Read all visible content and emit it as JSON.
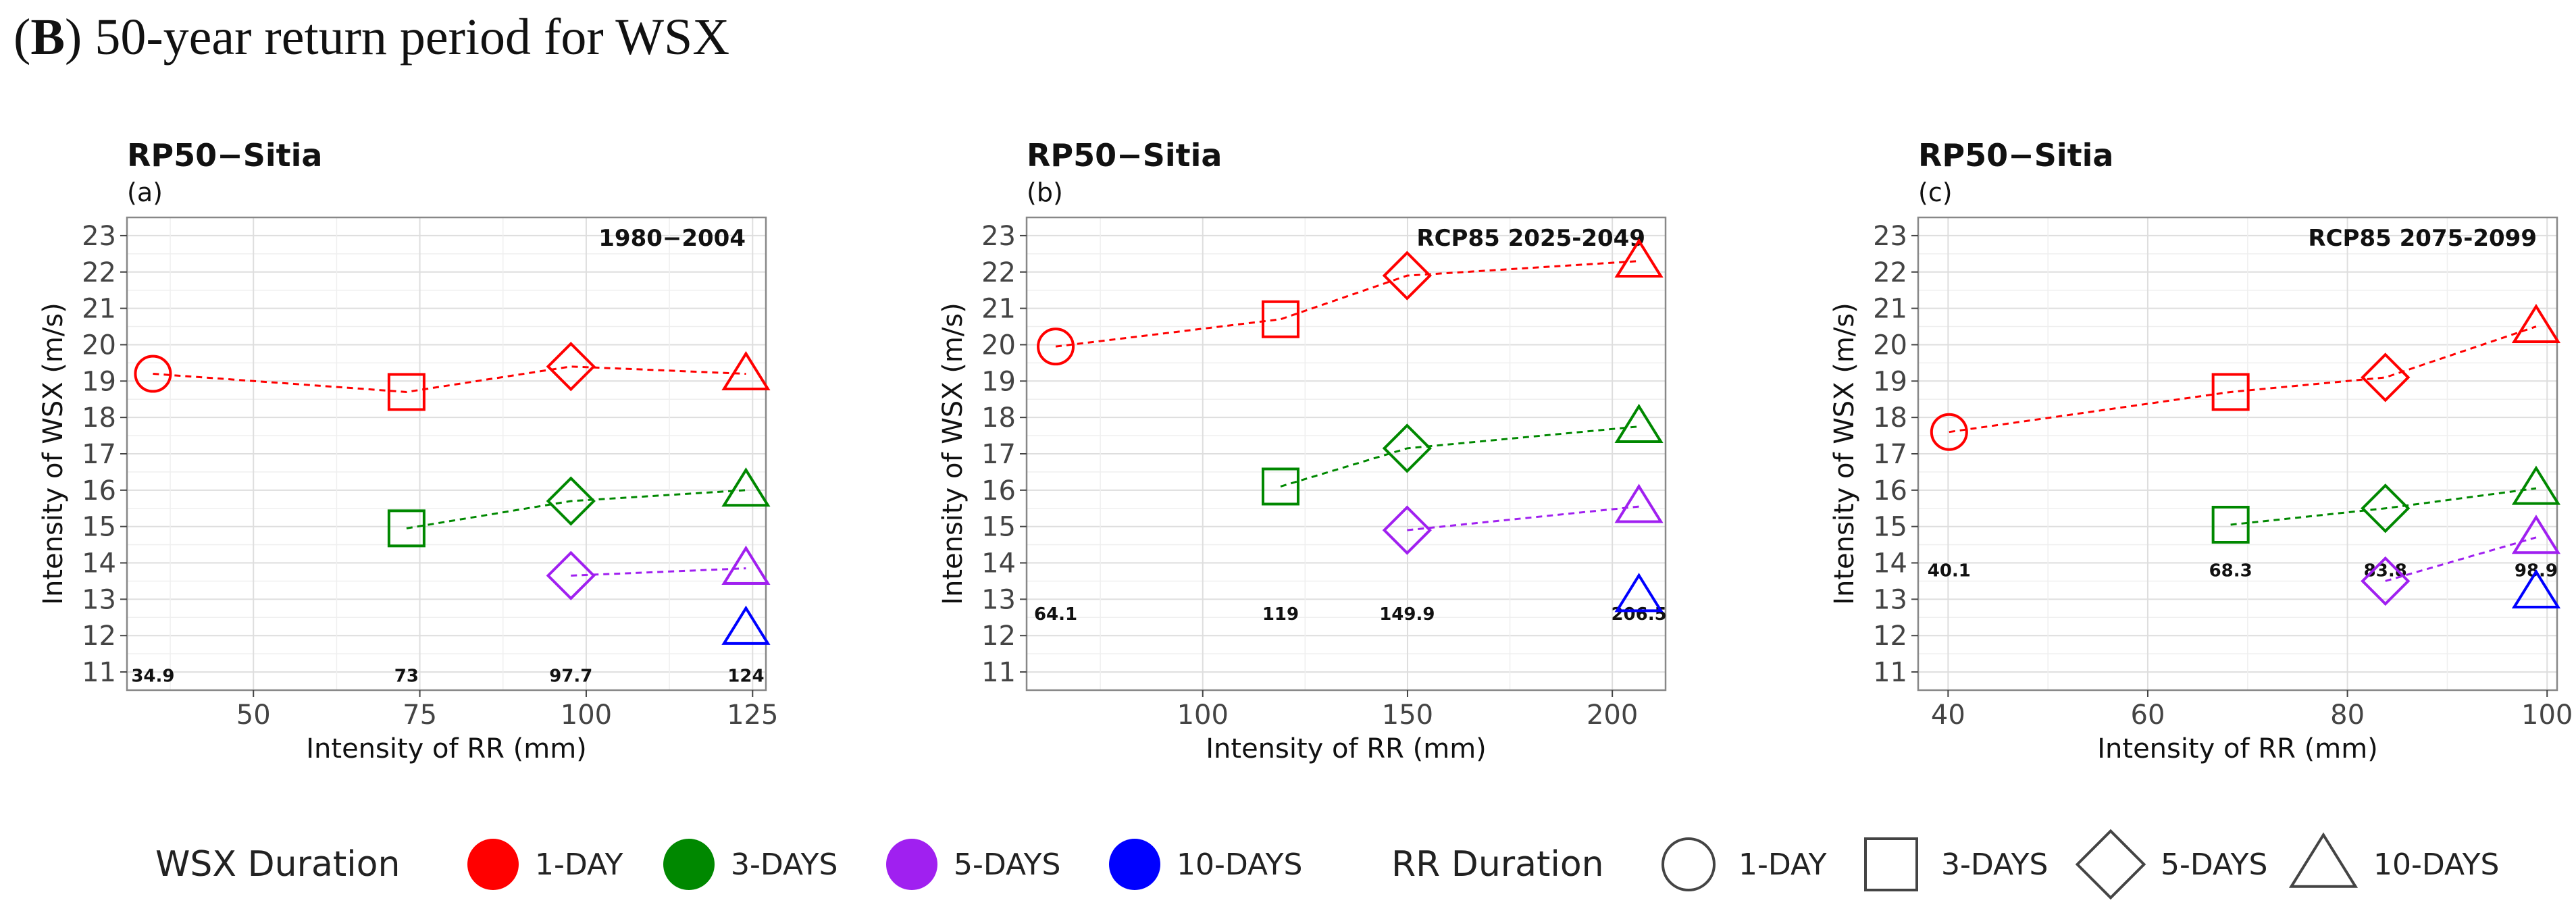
{
  "figure": {
    "label": "B",
    "heading": "50-year return period for WSX"
  },
  "chart_data": [
    {
      "type": "scatter",
      "title": "RP50−Sitia",
      "subtitle": "(a)",
      "period": "1980−2004",
      "xlabel": "Intensity of RR (mm)",
      "ylabel": "Intensity of WSX (m/s)",
      "xlim": [
        31,
        127
      ],
      "ylim": [
        10.5,
        23.5
      ],
      "xticks": [
        50,
        75,
        100,
        125
      ],
      "yticks": [
        11,
        12,
        13,
        14,
        15,
        16,
        17,
        18,
        19,
        20,
        21,
        22,
        23
      ],
      "rr_label_y": 10.9,
      "rr_labels": [
        {
          "x": 34.9,
          "text": "34.9"
        },
        {
          "x": 73,
          "text": "73"
        },
        {
          "x": 97.7,
          "text": "97.7"
        },
        {
          "x": 124,
          "text": "124"
        }
      ],
      "series": [
        {
          "name": "1-DAY",
          "points": [
            {
              "x": 34.9,
              "y": 19.2,
              "shape": "circle"
            },
            {
              "x": 73,
              "y": 18.7,
              "shape": "square"
            },
            {
              "x": 97.7,
              "y": 19.4,
              "shape": "diamond"
            },
            {
              "x": 124,
              "y": 19.2,
              "shape": "triangle"
            }
          ]
        },
        {
          "name": "3-DAYS",
          "points": [
            {
              "x": 73,
              "y": 14.95,
              "shape": "square"
            },
            {
              "x": 97.7,
              "y": 15.7,
              "shape": "diamond"
            },
            {
              "x": 124,
              "y": 16.0,
              "shape": "triangle"
            }
          ]
        },
        {
          "name": "5-DAYS",
          "points": [
            {
              "x": 97.7,
              "y": 13.65,
              "shape": "diamond"
            },
            {
              "x": 124,
              "y": 13.85,
              "shape": "triangle"
            }
          ]
        },
        {
          "name": "10-DAYS",
          "points": [
            {
              "x": 124,
              "y": 12.2,
              "shape": "triangle"
            }
          ]
        }
      ]
    },
    {
      "type": "scatter",
      "title": "RP50−Sitia",
      "subtitle": "(b)",
      "period": "RCP85 2025-2049",
      "xlabel": "Intensity of RR (mm)",
      "ylabel": "Intensity of WSX (m/s)",
      "xlim": [
        57,
        213
      ],
      "ylim": [
        10.5,
        23.5
      ],
      "xticks": [
        100,
        150,
        200
      ],
      "yticks": [
        11,
        12,
        13,
        14,
        15,
        16,
        17,
        18,
        19,
        20,
        21,
        22,
        23
      ],
      "rr_label_y": 12.6,
      "rr_labels": [
        {
          "x": 64.1,
          "text": "64.1"
        },
        {
          "x": 119,
          "text": "119"
        },
        {
          "x": 149.9,
          "text": "149.9"
        },
        {
          "x": 206.5,
          "text": "206.5"
        }
      ],
      "series": [
        {
          "name": "1-DAY",
          "points": [
            {
              "x": 64.1,
              "y": 19.95,
              "shape": "circle"
            },
            {
              "x": 119,
              "y": 20.7,
              "shape": "square"
            },
            {
              "x": 149.9,
              "y": 21.9,
              "shape": "diamond"
            },
            {
              "x": 206.5,
              "y": 22.3,
              "shape": "triangle"
            }
          ]
        },
        {
          "name": "3-DAYS",
          "points": [
            {
              "x": 119,
              "y": 16.1,
              "shape": "square"
            },
            {
              "x": 149.9,
              "y": 17.15,
              "shape": "diamond"
            },
            {
              "x": 206.5,
              "y": 17.75,
              "shape": "triangle"
            }
          ]
        },
        {
          "name": "5-DAYS",
          "points": [
            {
              "x": 149.9,
              "y": 14.9,
              "shape": "diamond"
            },
            {
              "x": 206.5,
              "y": 15.55,
              "shape": "triangle"
            }
          ]
        },
        {
          "name": "10-DAYS",
          "points": [
            {
              "x": 206.5,
              "y": 13.1,
              "shape": "triangle"
            }
          ]
        }
      ]
    },
    {
      "type": "scatter",
      "title": "RP50−Sitia",
      "subtitle": "(c)",
      "period": "RCP85 2075-2099",
      "xlabel": "Intensity of RR (mm)",
      "ylabel": "Intensity of WSX (m/s)",
      "xlim": [
        37,
        101
      ],
      "ylim": [
        10.5,
        23.5
      ],
      "xticks": [
        40,
        60,
        80,
        100
      ],
      "yticks": [
        11,
        12,
        13,
        14,
        15,
        16,
        17,
        18,
        19,
        20,
        21,
        22,
        23
      ],
      "rr_label_y": 13.8,
      "rr_labels": [
        {
          "x": 40.1,
          "text": "40.1"
        },
        {
          "x": 68.3,
          "text": "68.3"
        },
        {
          "x": 83.8,
          "text": "83.8"
        },
        {
          "x": 98.9,
          "text": "98.9"
        }
      ],
      "series": [
        {
          "name": "1-DAY",
          "points": [
            {
              "x": 40.1,
              "y": 17.6,
              "shape": "circle"
            },
            {
              "x": 68.3,
              "y": 18.7,
              "shape": "square"
            },
            {
              "x": 83.8,
              "y": 19.1,
              "shape": "diamond"
            },
            {
              "x": 98.9,
              "y": 20.5,
              "shape": "triangle"
            }
          ]
        },
        {
          "name": "3-DAYS",
          "points": [
            {
              "x": 68.3,
              "y": 15.05,
              "shape": "square"
            },
            {
              "x": 83.8,
              "y": 15.5,
              "shape": "diamond"
            },
            {
              "x": 98.9,
              "y": 16.05,
              "shape": "triangle"
            }
          ]
        },
        {
          "name": "5-DAYS",
          "points": [
            {
              "x": 83.8,
              "y": 13.5,
              "shape": "diamond"
            },
            {
              "x": 98.9,
              "y": 14.7,
              "shape": "triangle"
            }
          ]
        },
        {
          "name": "10-DAYS",
          "points": [
            {
              "x": 98.9,
              "y": 13.2,
              "shape": "triangle"
            }
          ]
        }
      ]
    }
  ],
  "legend": {
    "wsx_title": "WSX Duration",
    "wsx_items": [
      {
        "label": "1-DAY",
        "color": "#ff0000"
      },
      {
        "label": "3-DAYS",
        "color": "#008800"
      },
      {
        "label": "5-DAYS",
        "color": "#a020f0"
      },
      {
        "label": "10-DAYS",
        "color": "#0000ff"
      }
    ],
    "rr_title": "RR Duration",
    "rr_items": [
      {
        "label": "1-DAY",
        "shape": "circle"
      },
      {
        "label": "3-DAYS",
        "shape": "square"
      },
      {
        "label": "5-DAYS",
        "shape": "diamond"
      },
      {
        "label": "10-DAYS",
        "shape": "triangle"
      }
    ]
  },
  "colors": {
    "1-DAY": "#ff0000",
    "3-DAYS": "#008800",
    "5-DAYS": "#a020f0",
    "10-DAYS": "#0000ff"
  }
}
